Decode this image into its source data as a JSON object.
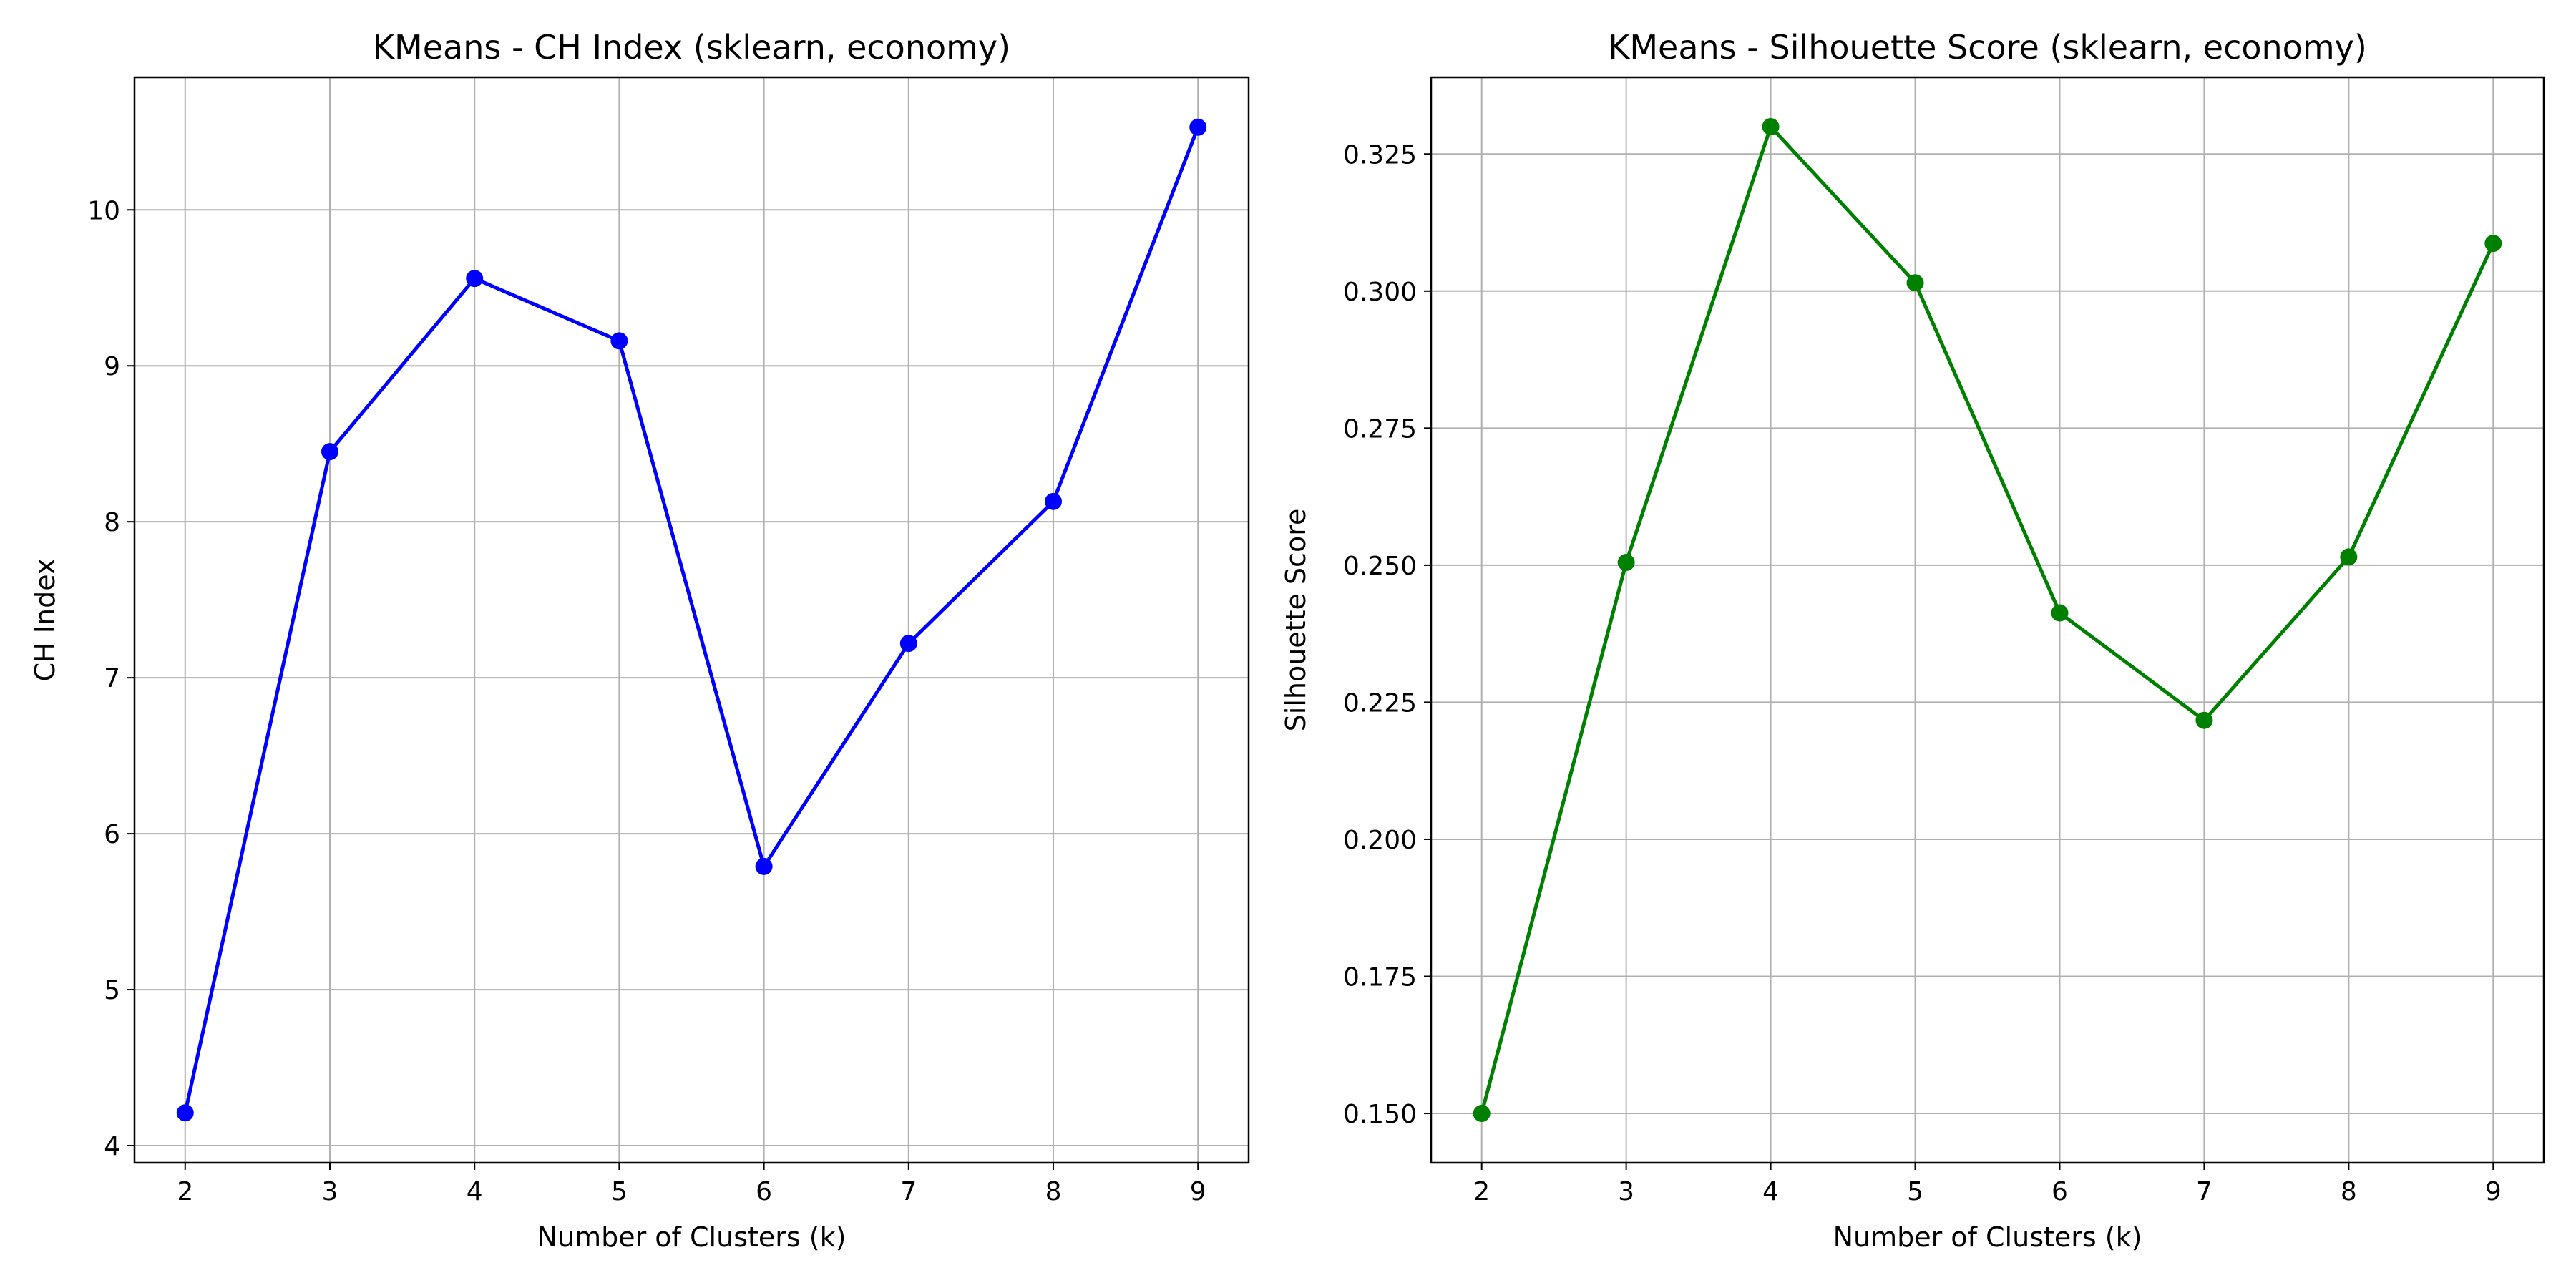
{
  "chart_data": [
    {
      "type": "line",
      "title": "KMeans - CH Index (sklearn, economy)",
      "xlabel": "Number of Clusters (k)",
      "ylabel": "CH Index",
      "x": [
        2,
        3,
        4,
        5,
        6,
        7,
        8,
        9
      ],
      "x_ticks": [
        "2",
        "3",
        "4",
        "5",
        "6",
        "7",
        "8",
        "9"
      ],
      "xlim": [
        1.65,
        9.35
      ],
      "y_ticks": [
        "4",
        "5",
        "6",
        "7",
        "8",
        "9",
        "10"
      ],
      "y_tick_values": [
        4,
        5,
        6,
        7,
        8,
        9,
        10
      ],
      "ylim": [
        3.89,
        10.85
      ],
      "grid": true,
      "marker": "circle",
      "series": [
        {
          "color": "#0000ff",
          "values": [
            4.21,
            8.45,
            9.56,
            9.16,
            5.79,
            7.22,
            8.13,
            10.53
          ]
        }
      ]
    },
    {
      "type": "line",
      "title": "KMeans - Silhouette Score (sklearn, economy)",
      "xlabel": "Number of Clusters (k)",
      "ylabel": "Silhouette Score",
      "x": [
        2,
        3,
        4,
        5,
        6,
        7,
        8,
        9
      ],
      "x_ticks": [
        "2",
        "3",
        "4",
        "5",
        "6",
        "7",
        "8",
        "9"
      ],
      "xlim": [
        1.65,
        9.35
      ],
      "y_ticks": [
        "0.150",
        "0.175",
        "0.200",
        "0.225",
        "0.250",
        "0.275",
        "0.300",
        "0.325"
      ],
      "y_tick_values": [
        0.15,
        0.175,
        0.2,
        0.225,
        0.25,
        0.275,
        0.3,
        0.325
      ],
      "ylim": [
        0.141,
        0.339
      ],
      "grid": true,
      "marker": "circle",
      "series": [
        {
          "color": "#008000",
          "values": [
            0.15,
            0.2505,
            0.33,
            0.3015,
            0.2413,
            0.2217,
            0.2515,
            0.3087
          ]
        }
      ]
    }
  ]
}
